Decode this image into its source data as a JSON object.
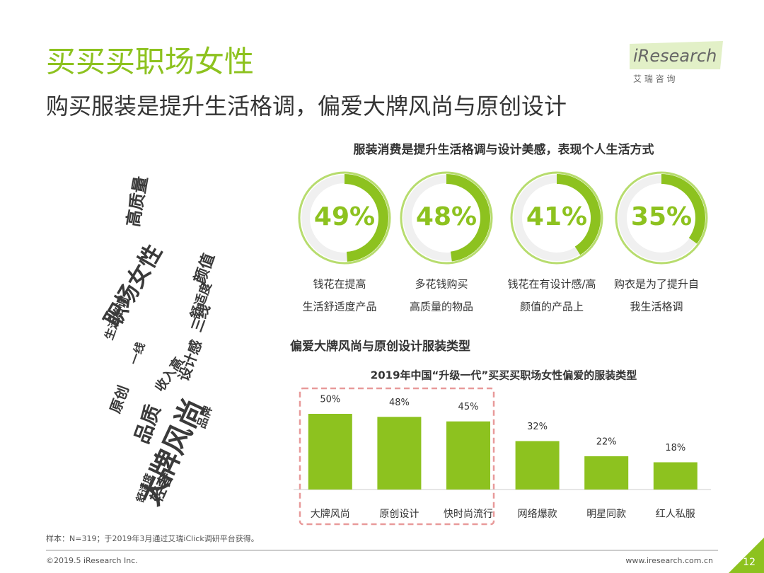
{
  "header": {
    "title": "买买买职场女性",
    "subtitle": "购买服装是提升生活格调，偏爱大牌风尚与原创设计",
    "logo": "iResearch",
    "logo_sub": "艾 瑞 咨 询"
  },
  "word_cloud": [
    "职场女性",
    "大牌风尚",
    "高质量",
    "颜值",
    "舒适度",
    "生活格调",
    "收入高",
    "三线",
    "原创",
    "品质",
    "轻奢",
    "设计感",
    "一线",
    "品牌",
    "舒适度"
  ],
  "chart_data": [
    {
      "type": "donut",
      "title": "服装消费是提升生活格调与设计美感，表现个人生活方式",
      "categories": [
        [
          "钱花在提高",
          "生活舒适度产品"
        ],
        [
          "多花钱购买",
          "高质量的物品"
        ],
        [
          "钱花在有设计感/高",
          "颜值的产品上"
        ],
        [
          "购衣是为了提升自",
          "我生活格调"
        ]
      ],
      "values": [
        49,
        48,
        41,
        35
      ],
      "value_labels": [
        "49%",
        "48%",
        "41%",
        "35%"
      ],
      "color": "#8dc21f"
    },
    {
      "type": "bar",
      "section": "偏爱大牌风尚与原创设计服装类型",
      "title": "2019年中国“升级一代”买买买职场女性偏爱的服装类型",
      "categories": [
        "大牌风尚",
        "原创设计",
        "快时尚流行",
        "网络爆款",
        "明星同款",
        "红人私服"
      ],
      "values": [
        50,
        48,
        45,
        32,
        22,
        18
      ],
      "value_labels": [
        "50%",
        "48%",
        "45%",
        "32%",
        "22%",
        "18%"
      ],
      "color": "#8dc21f"
    }
  ],
  "footer": {
    "note": "样本：N=319；于2019年3月通过艾瑞iClick调研平台获得。",
    "copyright": "©2019.5 iResearch Inc.",
    "url": "www.iresearch.com.cn",
    "page": "12"
  }
}
